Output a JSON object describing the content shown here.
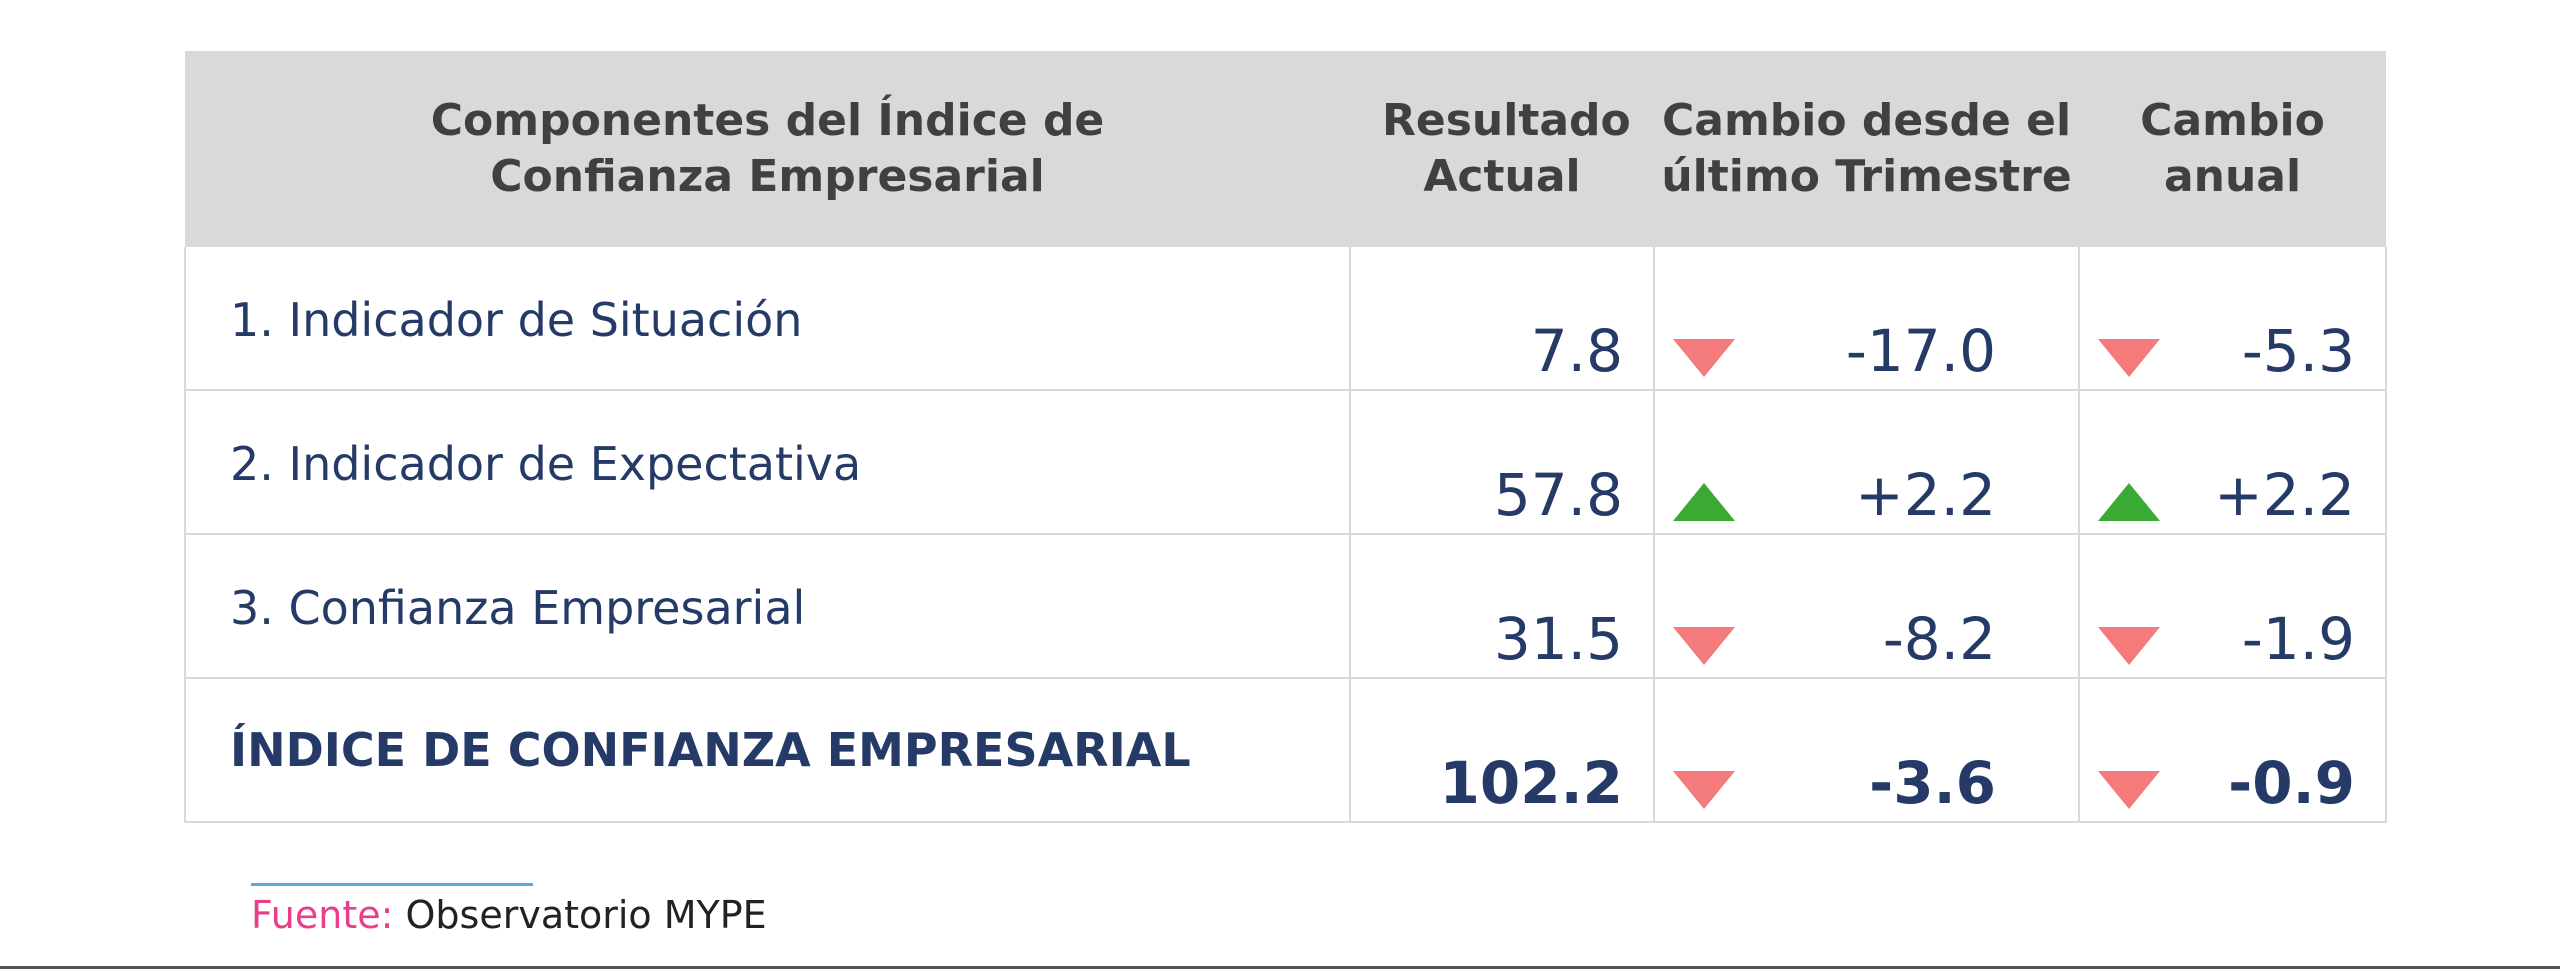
{
  "colors": {
    "header_bg": "#d9d9d9",
    "header_text": "#404040",
    "body_text": "#253a66",
    "down_arrow": "#f47b7b",
    "up_arrow": "#3aaa35",
    "source_label": "#e83e8c",
    "source_line": "#5aa9df"
  },
  "header": {
    "component": "Componentes del Índice de Confianza Empresarial",
    "current": "Resultado Actual",
    "quarter_change": "Cambio desde el último Trimestre",
    "annual_change": "Cambio anual"
  },
  "rows": [
    {
      "name": "1. Indicador de Situación",
      "current": "7.8",
      "quarter_dir": "down",
      "quarter": "-17.0",
      "annual_dir": "down",
      "annual": "-5.3"
    },
    {
      "name": "2. Indicador de Expectativa",
      "current": "57.8",
      "quarter_dir": "up",
      "quarter": "+2.2",
      "annual_dir": "up",
      "annual": "+2.2"
    },
    {
      "name": "3. Confianza Empresarial",
      "current": "31.5",
      "quarter_dir": "down",
      "quarter": "-8.2",
      "annual_dir": "down",
      "annual": "-1.9"
    },
    {
      "name": "ÍNDICE DE CONFIANZA EMPRESARIAL",
      "current": "102.2",
      "quarter_dir": "down",
      "quarter": "-3.6",
      "annual_dir": "down",
      "annual": "-0.9"
    }
  ],
  "source": {
    "label": "Fuente:",
    "value": " Observatorio MYPE"
  }
}
